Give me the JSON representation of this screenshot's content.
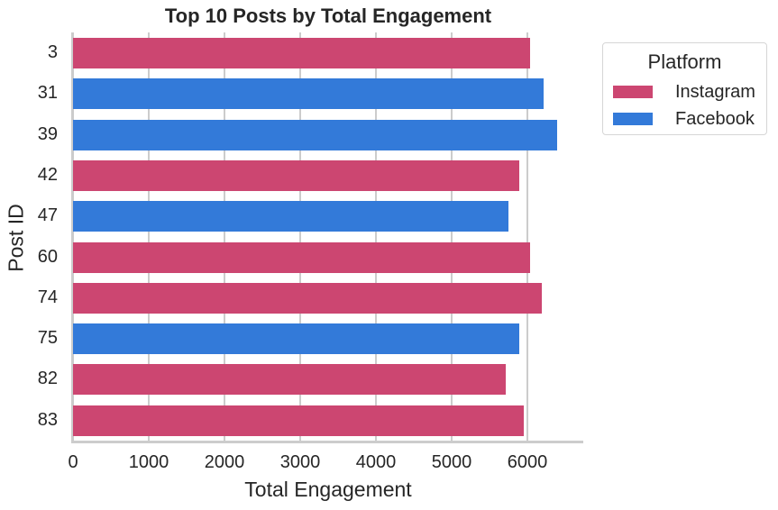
{
  "chart_data": {
    "type": "bar",
    "orientation": "horizontal",
    "title": "Top 10 Posts by Total Engagement",
    "xlabel": "Total Engagement",
    "ylabel": "Post ID",
    "xlim": [
      0,
      6700
    ],
    "xticks": [
      "0",
      "1000",
      "2000",
      "3000",
      "4000",
      "5000",
      "6000"
    ],
    "grid": true,
    "legend_position": "outside upper right",
    "legend_title": "Platform",
    "categories": [
      "3",
      "31",
      "39",
      "42",
      "47",
      "60",
      "74",
      "75",
      "82",
      "83"
    ],
    "values": [
      6036,
      6214,
      6393,
      5893,
      5750,
      6036,
      6190,
      5893,
      5714,
      5952
    ],
    "platform": [
      "Instagram",
      "Facebook",
      "Facebook",
      "Instagram",
      "Facebook",
      "Instagram",
      "Instagram",
      "Facebook",
      "Instagram",
      "Instagram"
    ],
    "series": [
      {
        "name": "Instagram",
        "color": "#cc4671"
      },
      {
        "name": "Facebook",
        "color": "#337ad9"
      }
    ]
  },
  "legend": {
    "title": "Platform",
    "items": [
      {
        "label": "Instagram",
        "color": "#cc4671"
      },
      {
        "label": "Facebook",
        "color": "#337ad9"
      }
    ]
  }
}
